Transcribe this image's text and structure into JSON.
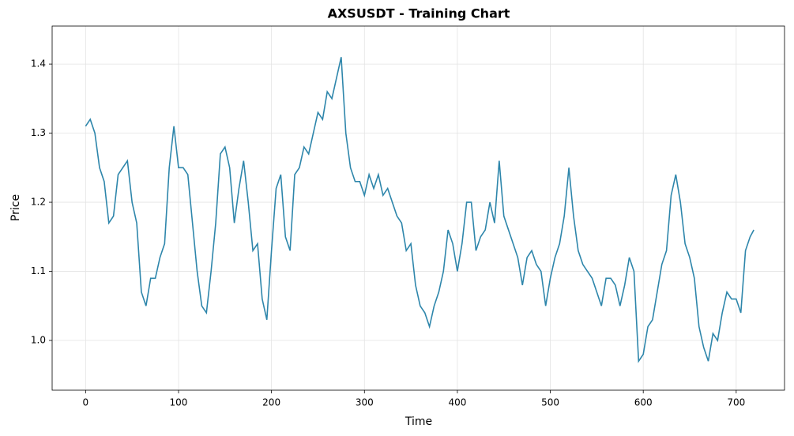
{
  "chart_data": {
    "type": "line",
    "title": "AXSUSDT - Training Chart",
    "x_label": "Time",
    "y_label": "Price",
    "x": [
      0,
      5,
      10,
      15,
      20,
      25,
      30,
      35,
      40,
      45,
      50,
      55,
      60,
      65,
      70,
      75,
      80,
      85,
      90,
      95,
      100,
      105,
      110,
      115,
      120,
      125,
      130,
      135,
      140,
      145,
      150,
      155,
      160,
      165,
      170,
      175,
      180,
      185,
      190,
      195,
      200,
      205,
      210,
      215,
      220,
      225,
      230,
      235,
      240,
      245,
      250,
      255,
      260,
      265,
      270,
      275,
      280,
      285,
      290,
      295,
      300,
      305,
      310,
      315,
      320,
      325,
      330,
      335,
      340,
      345,
      350,
      355,
      360,
      365,
      370,
      375,
      380,
      385,
      390,
      395,
      400,
      405,
      410,
      415,
      420,
      425,
      430,
      435,
      440,
      445,
      450,
      455,
      460,
      465,
      470,
      475,
      480,
      485,
      490,
      495,
      500,
      505,
      510,
      515,
      520,
      525,
      530,
      535,
      540,
      545,
      550,
      555,
      560,
      565,
      570,
      575,
      580,
      585,
      590,
      595,
      600,
      605,
      610,
      615,
      620,
      625,
      630,
      635,
      640,
      645,
      650,
      655,
      660,
      665,
      670,
      675,
      680,
      685,
      690,
      695,
      700,
      705,
      710,
      715,
      719
    ],
    "series": [
      {
        "name": "AXSUSDT",
        "color": "#2e86ab",
        "values": [
          1.31,
          1.32,
          1.3,
          1.25,
          1.23,
          1.17,
          1.18,
          1.24,
          1.25,
          1.26,
          1.2,
          1.17,
          1.07,
          1.05,
          1.09,
          1.09,
          1.12,
          1.14,
          1.25,
          1.31,
          1.25,
          1.25,
          1.24,
          1.17,
          1.1,
          1.05,
          1.04,
          1.1,
          1.17,
          1.27,
          1.28,
          1.25,
          1.17,
          1.22,
          1.26,
          1.2,
          1.13,
          1.14,
          1.06,
          1.03,
          1.13,
          1.22,
          1.24,
          1.15,
          1.13,
          1.24,
          1.25,
          1.28,
          1.27,
          1.3,
          1.33,
          1.32,
          1.36,
          1.35,
          1.38,
          1.41,
          1.3,
          1.25,
          1.23,
          1.23,
          1.21,
          1.24,
          1.22,
          1.24,
          1.21,
          1.22,
          1.2,
          1.18,
          1.17,
          1.13,
          1.14,
          1.08,
          1.05,
          1.04,
          1.02,
          1.05,
          1.07,
          1.1,
          1.16,
          1.14,
          1.1,
          1.14,
          1.2,
          1.2,
          1.13,
          1.15,
          1.16,
          1.2,
          1.17,
          1.26,
          1.18,
          1.16,
          1.14,
          1.12,
          1.08,
          1.12,
          1.13,
          1.11,
          1.1,
          1.05,
          1.09,
          1.12,
          1.14,
          1.18,
          1.25,
          1.18,
          1.13,
          1.11,
          1.1,
          1.09,
          1.07,
          1.05,
          1.09,
          1.09,
          1.08,
          1.05,
          1.08,
          1.12,
          1.1,
          0.97,
          0.98,
          1.02,
          1.03,
          1.07,
          1.11,
          1.13,
          1.21,
          1.24,
          1.2,
          1.14,
          1.12,
          1.09,
          1.02,
          0.99,
          0.97,
          1.01,
          1.0,
          1.04,
          1.07,
          1.06,
          1.06,
          1.04,
          1.13,
          1.15,
          1.16
        ]
      }
    ],
    "xlim": [
      -36,
      752
    ],
    "ylim": [
      0.928,
      1.455
    ],
    "xticks": [
      0,
      100,
      200,
      300,
      400,
      500,
      600,
      700
    ],
    "yticks": [
      {
        "value": 1,
        "label": "1.0"
      },
      1.1,
      1.2,
      1.3,
      1.4
    ],
    "grid": true
  }
}
